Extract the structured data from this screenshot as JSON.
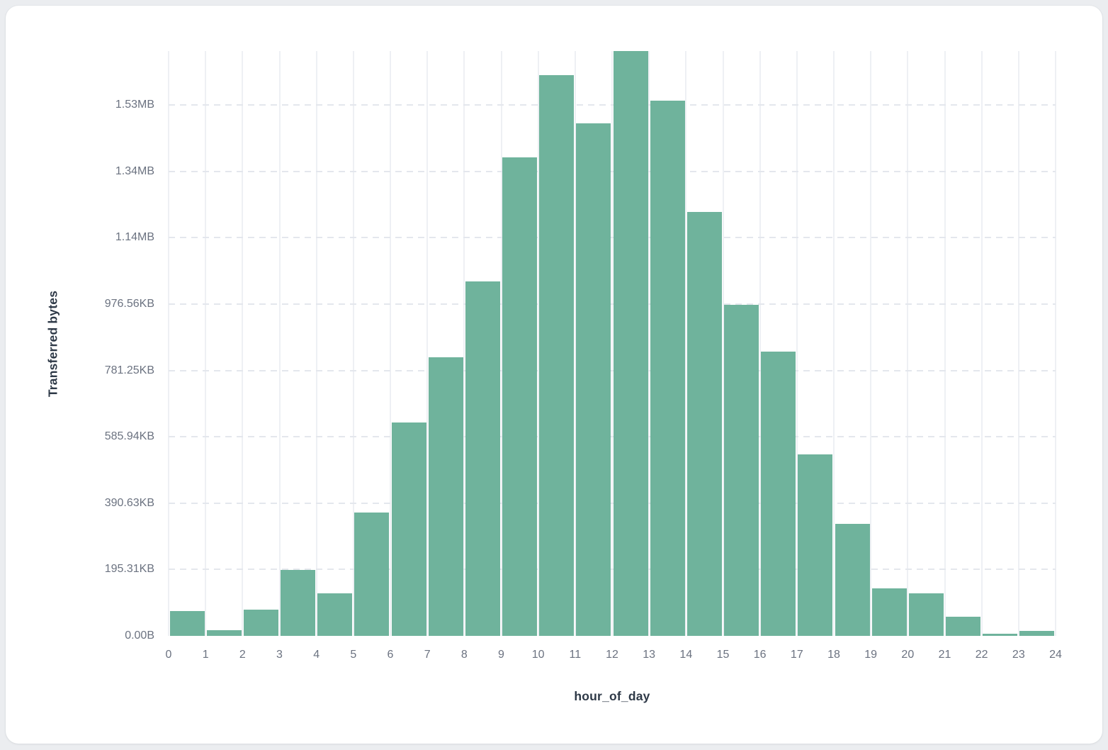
{
  "chart_data": {
    "type": "bar",
    "subtype": "histogram",
    "title": "",
    "xlabel": "hour_of_day",
    "ylabel": "Transferred bytes",
    "unit": "bytes",
    "bin_width": 1,
    "bin_starts": [
      0,
      1,
      2,
      3,
      4,
      5,
      6,
      7,
      8,
      9,
      10,
      11,
      12,
      13,
      14,
      15,
      16,
      17,
      18,
      19,
      20,
      21,
      22,
      23
    ],
    "values": [
      75000,
      17000,
      79000,
      198000,
      128000,
      372000,
      643000,
      840000,
      1068000,
      1442000,
      1690000,
      1545000,
      1763000,
      1613000,
      1278000,
      998000,
      857000,
      547000,
      338000,
      143000,
      128000,
      58000,
      6000,
      15000
    ],
    "x_tick_labels": [
      "0",
      "1",
      "2",
      "3",
      "4",
      "5",
      "6",
      "7",
      "8",
      "9",
      "10",
      "11",
      "12",
      "13",
      "14",
      "15",
      "16",
      "17",
      "18",
      "19",
      "20",
      "21",
      "22",
      "23",
      "24"
    ],
    "y_ticks": [
      {
        "label": "0.00B",
        "value": 0
      },
      {
        "label": "195.31KB",
        "value": 200000
      },
      {
        "label": "390.63KB",
        "value": 400000
      },
      {
        "label": "585.94KB",
        "value": 600000
      },
      {
        "label": "781.25KB",
        "value": 800000
      },
      {
        "label": "976.56KB",
        "value": 1000000
      },
      {
        "label": "1.14MB",
        "value": 1200000
      },
      {
        "label": "1.34MB",
        "value": 1400000
      },
      {
        "label": "1.53MB",
        "value": 1600000
      }
    ],
    "ylim": [
      0,
      1763000
    ],
    "xlim": [
      0,
      24
    ],
    "grid": {
      "vertical": "solid",
      "horizontal": "dashed"
    },
    "legend": "none"
  },
  "colors": {
    "bar": "#6fb39c",
    "grid_vertical": "#eef0f4",
    "grid_dashed": "#e4e7ed",
    "tick_label": "#6b7280",
    "axis_title": "#2e3947",
    "card_bg": "#ffffff",
    "page_bg": "#ebedf0"
  }
}
